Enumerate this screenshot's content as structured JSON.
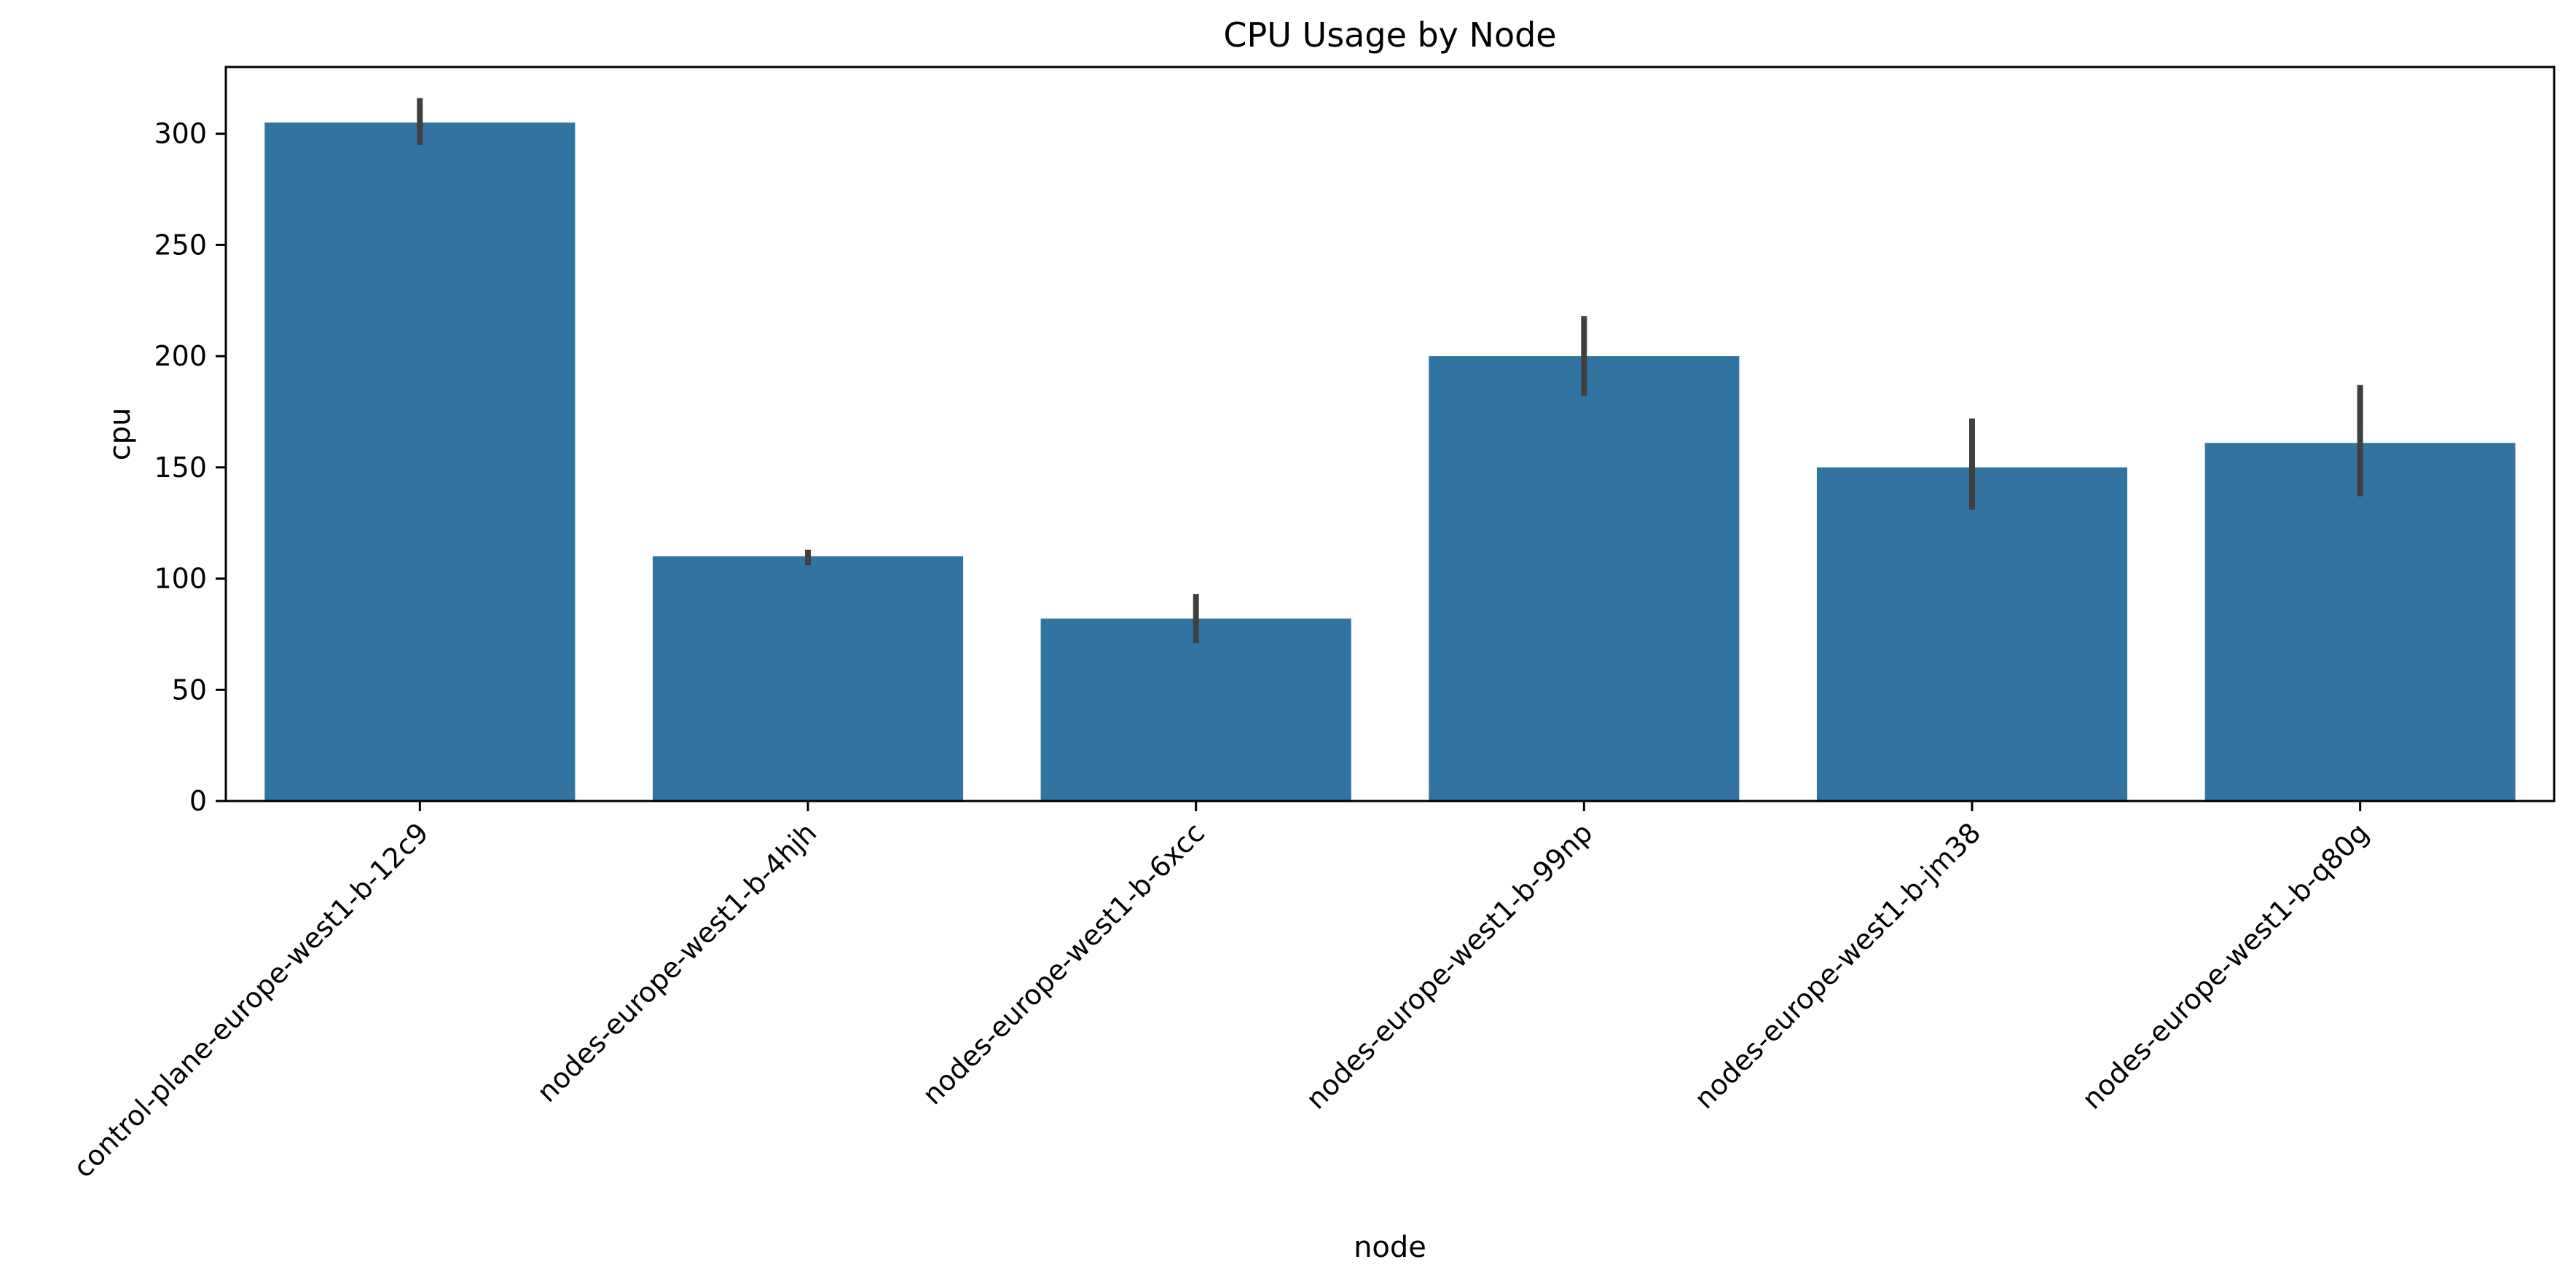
{
  "chart_data": {
    "type": "bar",
    "title": "CPU Usage by Node",
    "xlabel": "node",
    "ylabel": "cpu",
    "ylim": [
      0,
      330
    ],
    "yticks": [
      0,
      50,
      100,
      150,
      200,
      250,
      300
    ],
    "grid": false,
    "legend": "none",
    "categories": [
      "control-plane-europe-west1-b-12c9",
      "nodes-europe-west1-b-4hjh",
      "nodes-europe-west1-b-6xcc",
      "nodes-europe-west1-b-99np",
      "nodes-europe-west1-b-jm38",
      "nodes-europe-west1-b-q80g"
    ],
    "values": [
      305,
      110,
      82,
      200,
      150,
      161
    ],
    "error_bars": [
      [
        295,
        316
      ],
      [
        106,
        113
      ],
      [
        71,
        93
      ],
      [
        182,
        218
      ],
      [
        131,
        172
      ],
      [
        137,
        187
      ]
    ],
    "colors": {
      "bar": "#3274a1",
      "error_bar": "#404040",
      "axis": "#000000"
    }
  }
}
